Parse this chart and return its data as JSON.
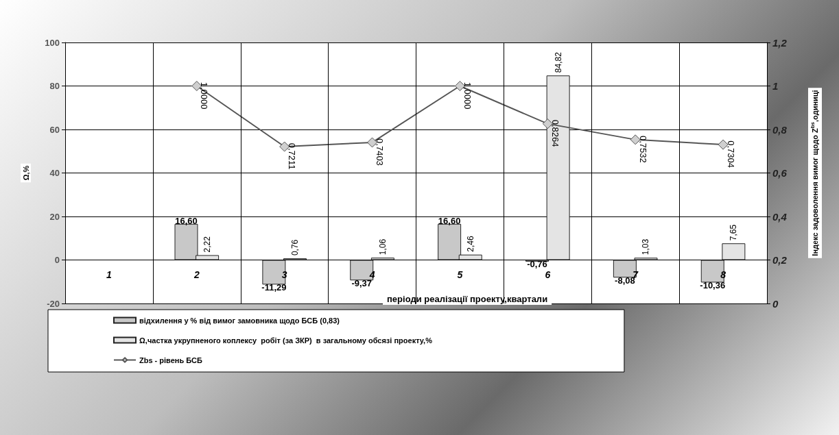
{
  "chart_data": {
    "type": "bar",
    "categories": [
      "1",
      "2",
      "3",
      "4",
      "5",
      "6",
      "7",
      "8"
    ],
    "xlabel": "періоди реалізації проекту,квартали",
    "ylabel": "Ω,%",
    "y2label": "Індекс задоволення вимог щодо Z$^{bs}$,одиниці",
    "series": [
      {
        "name": "відхилення у % від вимог замовника щодо БСБ (0,83)",
        "color": "#c8c8c8",
        "values": [
          null,
          16.6,
          -11.29,
          -9.37,
          16.6,
          -0.76,
          -8.08,
          -10.36
        ],
        "value_labels": [
          null,
          "16,60",
          "-11,29",
          "-9,37",
          "16,60",
          "-0,76",
          "-8,08",
          "-10,36"
        ]
      },
      {
        "name": "Ω,частка укрупненого коплексу  робіт (за ЗКР)  в загальному обсязі проекту,%",
        "color": "#e4e4e4",
        "values": [
          null,
          2.22,
          0.76,
          1.06,
          2.46,
          84.82,
          1.03,
          7.65
        ],
        "value_labels": [
          null,
          "2,22",
          "0,76",
          "1,06",
          "2,46",
          "84,82",
          "1,03",
          "7,65"
        ]
      },
      {
        "name": "Zbs - рівень БСБ",
        "type": "line",
        "axis": "y2",
        "color": "#555555",
        "values": [
          null,
          1.0,
          0.7211,
          0.7403,
          1.0,
          0.8264,
          0.7532,
          0.7304
        ],
        "value_labels": [
          null,
          "1,0000",
          "0,7211",
          "0,7403",
          "1,0000",
          "0,8264",
          "0,7532",
          "0,7304"
        ]
      }
    ],
    "ylim": [
      -20,
      100
    ],
    "yticks": [
      -20,
      0,
      20,
      40,
      60,
      80,
      100
    ],
    "y2lim": [
      0,
      1.2
    ],
    "y2ticks": [
      0,
      {
        "value": 0.2,
        "label": "0,2"
      },
      {
        "value": 0.4,
        "label": "0,4"
      },
      {
        "value": 0.6,
        "label": "0,6"
      },
      {
        "value": 0.8,
        "label": "0,8"
      },
      1,
      {
        "value": 1.2,
        "label": "1,2"
      }
    ],
    "grid": true,
    "legend": "bottom left",
    "marker": "diamond"
  }
}
